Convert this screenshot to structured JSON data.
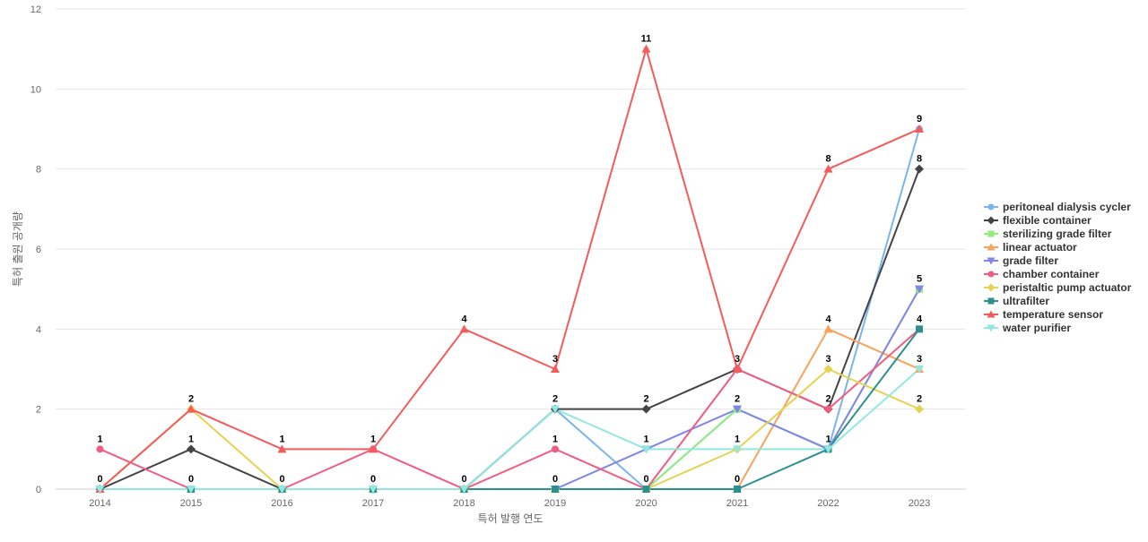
{
  "chart_data": {
    "type": "line",
    "title": "",
    "xlabel": "특허 발행 연도",
    "ylabel": "특허 출원 공개량",
    "x": [
      2014,
      2015,
      2016,
      2017,
      2018,
      2019,
      2020,
      2021,
      2022,
      2023
    ],
    "ylim": [
      0,
      12
    ],
    "yticks": [
      0,
      2,
      4,
      6,
      8,
      10,
      12
    ],
    "grid": true,
    "legend_position": "right",
    "series": [
      {
        "name": "peritoneal dialysis cycler",
        "color": "#7cb5ec",
        "marker": "circle",
        "values": [
          0,
          0,
          0,
          0,
          0,
          2,
          0,
          2,
          1,
          9
        ]
      },
      {
        "name": "flexible container",
        "color": "#434348",
        "marker": "diamond",
        "values": [
          0,
          1,
          0,
          0,
          0,
          2,
          2,
          3,
          2,
          8
        ]
      },
      {
        "name": "sterilizing grade filter",
        "color": "#90ed7d",
        "marker": "square",
        "values": [
          0,
          0,
          0,
          0,
          0,
          0,
          0,
          2,
          1,
          5
        ]
      },
      {
        "name": "linear actuator",
        "color": "#f7a35c",
        "marker": "triangle",
        "values": [
          0,
          0,
          0,
          0,
          0,
          0,
          0,
          0,
          4,
          3
        ]
      },
      {
        "name": "grade filter",
        "color": "#8085e9",
        "marker": "triangle-down",
        "values": [
          0,
          0,
          0,
          0,
          0,
          0,
          1,
          2,
          1,
          5
        ]
      },
      {
        "name": "chamber container",
        "color": "#f15c80",
        "marker": "circle",
        "values": [
          1,
          0,
          0,
          1,
          0,
          1,
          0,
          3,
          2,
          4
        ]
      },
      {
        "name": "peristaltic pump actuator",
        "color": "#e4d354",
        "marker": "diamond",
        "values": [
          0,
          2,
          0,
          0,
          0,
          0,
          0,
          1,
          3,
          2
        ]
      },
      {
        "name": "ultrafilter",
        "color": "#2b908f",
        "marker": "square",
        "values": [
          0,
          0,
          0,
          0,
          0,
          0,
          0,
          0,
          1,
          4
        ]
      },
      {
        "name": "temperature sensor",
        "color": "#f45b5b",
        "marker": "triangle",
        "values": [
          0,
          2,
          1,
          1,
          4,
          3,
          11,
          3,
          8,
          9
        ]
      },
      {
        "name": "water purifier",
        "color": "#91e8e1",
        "marker": "triangle-down",
        "values": [
          0,
          0,
          0,
          0,
          0,
          2,
          1,
          1,
          1,
          3
        ]
      }
    ],
    "data_labels": [
      {
        "x": 2014,
        "text": "1",
        "value": 1
      },
      {
        "x": 2014,
        "text": "0",
        "value": 0
      },
      {
        "x": 2015,
        "text": "2",
        "value": 2
      },
      {
        "x": 2015,
        "text": "1",
        "value": 1
      },
      {
        "x": 2015,
        "text": "0",
        "value": 0
      },
      {
        "x": 2016,
        "text": "1",
        "value": 1
      },
      {
        "x": 2016,
        "text": "0",
        "value": 0
      },
      {
        "x": 2017,
        "text": "1",
        "value": 1
      },
      {
        "x": 2017,
        "text": "0",
        "value": 0
      },
      {
        "x": 2018,
        "text": "4",
        "value": 4
      },
      {
        "x": 2018,
        "text": "0",
        "value": 0
      },
      {
        "x": 2019,
        "text": "3",
        "value": 3
      },
      {
        "x": 2019,
        "text": "2",
        "value": 2
      },
      {
        "x": 2019,
        "text": "1",
        "value": 1
      },
      {
        "x": 2019,
        "text": "0",
        "value": 0
      },
      {
        "x": 2020,
        "text": "11",
        "value": 11
      },
      {
        "x": 2020,
        "text": "2",
        "value": 2
      },
      {
        "x": 2020,
        "text": "1",
        "value": 1
      },
      {
        "x": 2020,
        "text": "0",
        "value": 0
      },
      {
        "x": 2021,
        "text": "3",
        "value": 3
      },
      {
        "x": 2021,
        "text": "2",
        "value": 2
      },
      {
        "x": 2021,
        "text": "1",
        "value": 1
      },
      {
        "x": 2021,
        "text": "0",
        "value": 0
      },
      {
        "x": 2022,
        "text": "8",
        "value": 8
      },
      {
        "x": 2022,
        "text": "4",
        "value": 4
      },
      {
        "x": 2022,
        "text": "3",
        "value": 3
      },
      {
        "x": 2022,
        "text": "2",
        "value": 2
      },
      {
        "x": 2022,
        "text": "1",
        "value": 1
      },
      {
        "x": 2023,
        "text": "9",
        "value": 9
      },
      {
        "x": 2023,
        "text": "8",
        "value": 8
      },
      {
        "x": 2023,
        "text": "5",
        "value": 5
      },
      {
        "x": 2023,
        "text": "4",
        "value": 4
      },
      {
        "x": 2023,
        "text": "3",
        "value": 3
      },
      {
        "x": 2023,
        "text": "2",
        "value": 2
      }
    ]
  }
}
